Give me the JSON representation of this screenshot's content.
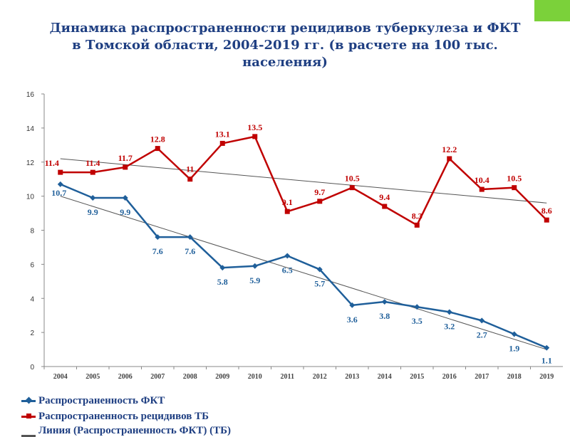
{
  "title": {
    "line1": "Динамика распространенности рецидивов туберкулеза  и  ФКТ",
    "line2": "в Томской области, 2004-2019 гг. (в расчете на 100 тыс.",
    "line3": "населения)"
  },
  "colors": {
    "fkt": "#1f5f9a",
    "tb": "#c00000",
    "trend": "#555555",
    "accent": "#7bd13a"
  },
  "chart_data": {
    "type": "line",
    "categories": [
      "2004",
      "2005",
      "2006",
      "2007",
      "2008",
      "2009",
      "2010",
      "2011",
      "2012",
      "2013",
      "2014",
      "2015",
      "2016",
      "2017",
      "2018",
      "2019"
    ],
    "ylim": [
      0,
      16
    ],
    "yticks": [
      0,
      2,
      4,
      6,
      8,
      10,
      12,
      14,
      16
    ],
    "series": [
      {
        "name": "Распространенность ФКТ",
        "values": [
          10.7,
          9.9,
          9.9,
          7.6,
          7.6,
          5.8,
          5.9,
          6.5,
          5.7,
          3.6,
          3.8,
          3.5,
          3.2,
          2.7,
          1.9,
          1.1
        ],
        "labels": [
          "10.7",
          "9.9",
          "9.9",
          "7.6",
          "7.6",
          "5.8",
          "5.9",
          "6.5",
          "5.7",
          "3.6",
          "3.8",
          "3.5",
          "3.2",
          "2.7",
          "1.9",
          "1.1"
        ]
      },
      {
        "name": "Распространенность рецидивов ТБ",
        "values": [
          11.4,
          11.4,
          11.7,
          12.8,
          11.0,
          13.1,
          13.5,
          9.1,
          9.7,
          10.5,
          9.4,
          8.3,
          12.2,
          10.4,
          10.5,
          8.6
        ],
        "labels": [
          "11.4",
          "11.4",
          "11.7",
          "12.8",
          "11",
          "13.1",
          "13.5",
          "9.1",
          "9.7",
          "10.5",
          "9.4",
          "8.3",
          "12.2",
          "10.4",
          "10.5",
          "8.6"
        ]
      }
    ],
    "trendlines": [
      {
        "of": "Распространенность ФКТ",
        "from": 10.0,
        "to": 1.0
      },
      {
        "of": "Распространенность рецидивов ТБ",
        "from": 12.2,
        "to": 9.6
      }
    ],
    "legend": {
      "placement": "bottom",
      "items": [
        "Распространенность ФКТ",
        "Распространенность рецидивов ТБ",
        "Линия (Распространенность ФКТ)   (ТБ)"
      ]
    },
    "grid": false
  }
}
